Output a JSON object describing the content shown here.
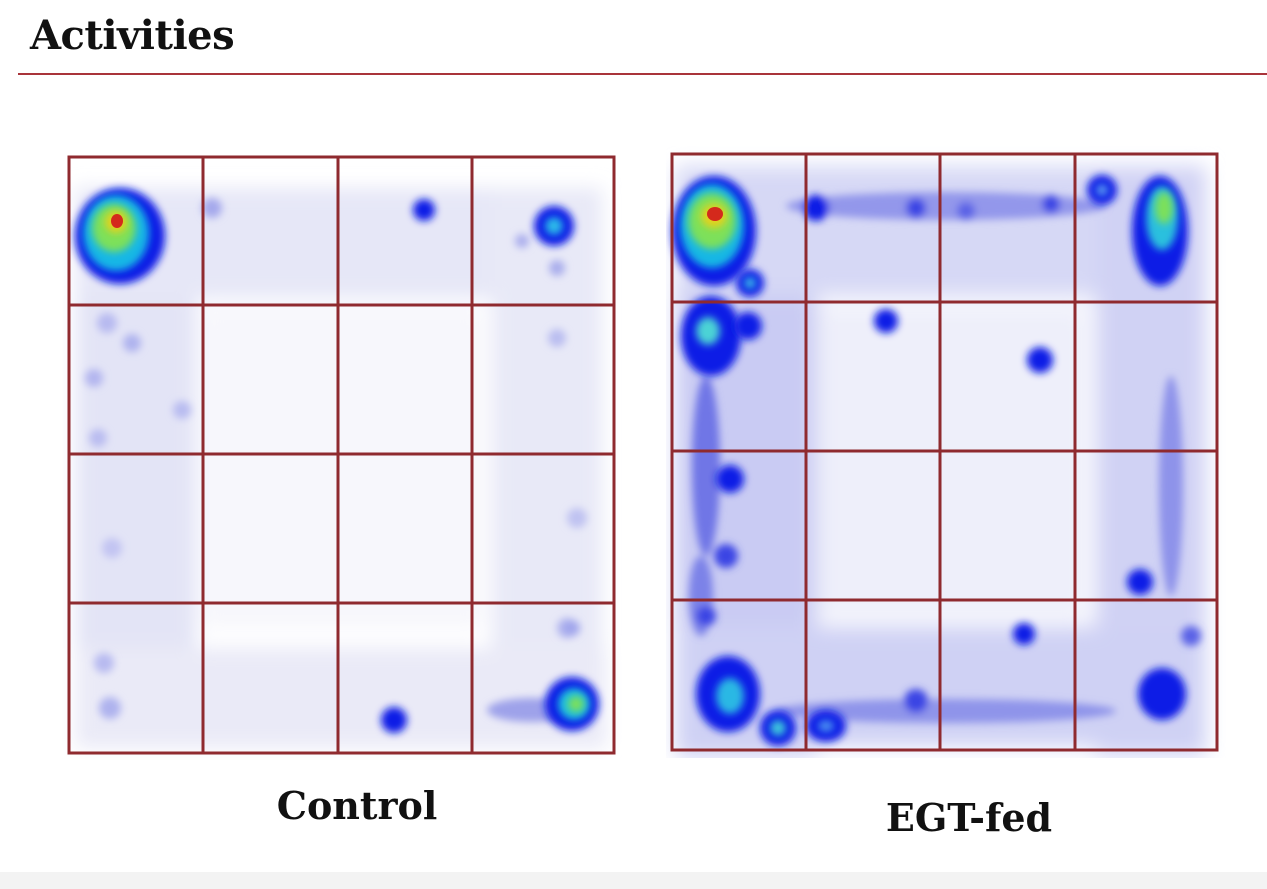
{
  "slide": {
    "title": "Activities"
  },
  "panels": [
    {
      "caption": "Control",
      "grid_rows": 4,
      "grid_cols": 4,
      "grid_color": "#8f2a2f",
      "heat_spots": [
        {
          "cell": [
            0,
            0
          ],
          "intensity": "very-high"
        },
        {
          "cell": [
            0,
            2
          ],
          "intensity": "low"
        },
        {
          "cell": [
            0,
            3
          ],
          "intensity": "medium"
        },
        {
          "cell": [
            3,
            2
          ],
          "intensity": "low"
        },
        {
          "cell": [
            3,
            3
          ],
          "intensity": "high"
        }
      ]
    },
    {
      "caption": "EGT-fed",
      "grid_rows": 4,
      "grid_cols": 4,
      "grid_color": "#8f2a2f",
      "heat_spots": [
        {
          "cell": [
            0,
            0
          ],
          "intensity": "very-high"
        },
        {
          "cell": [
            0,
            3
          ],
          "intensity": "high"
        },
        {
          "cell": [
            1,
            0
          ],
          "intensity": "high"
        },
        {
          "cell": [
            1,
            1
          ],
          "intensity": "low"
        },
        {
          "cell": [
            1,
            2
          ],
          "intensity": "low"
        },
        {
          "cell": [
            2,
            3
          ],
          "intensity": "low"
        },
        {
          "cell": [
            3,
            0
          ],
          "intensity": "high"
        },
        {
          "cell": [
            3,
            3
          ],
          "intensity": "medium"
        }
      ]
    }
  ],
  "colors": {
    "heat_low": "#dfe0f6",
    "heat_mid": "#0a1ae6",
    "heat_high": "#7de05a",
    "heat_peak": "#d4291c"
  }
}
